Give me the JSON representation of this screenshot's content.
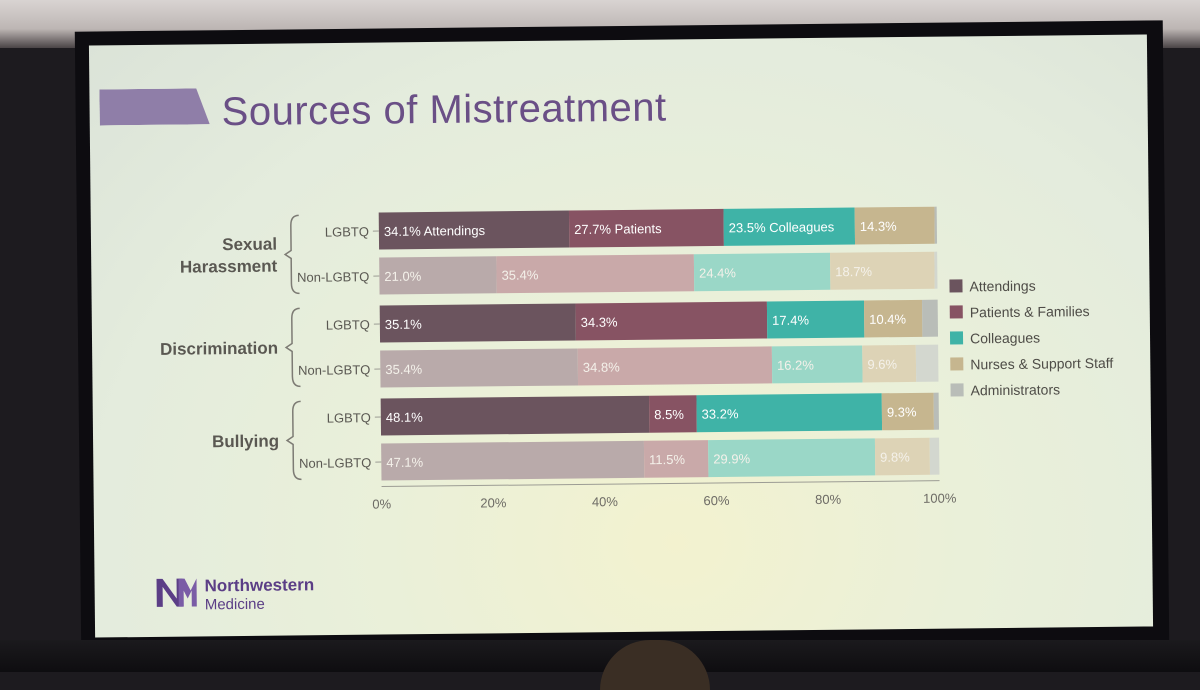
{
  "slide": {
    "title": "Sources of Mistreatment",
    "logo": {
      "line1": "Northwestern",
      "line2": "Medicine",
      "mark": "NM"
    }
  },
  "chart_data": {
    "type": "bar",
    "orientation": "horizontal",
    "stacked": true,
    "title": "Sources of Mistreatment",
    "xlim": [
      0,
      100
    ],
    "xticks": [
      "0%",
      "20%",
      "40%",
      "60%",
      "80%",
      "100%"
    ],
    "groups": [
      {
        "name": "Sexual Harassment",
        "lines": [
          "Sexual",
          "Harassment"
        ],
        "rows": [
          "LGBTQ",
          "Non-LGBTQ"
        ]
      },
      {
        "name": "Discrimination",
        "lines": [
          "Discrimination"
        ],
        "rows": [
          "LGBTQ",
          "Non-LGBTQ"
        ]
      },
      {
        "name": "Bullying",
        "lines": [
          "Bullying"
        ],
        "rows": [
          "LGBTQ",
          "Non-LGBTQ"
        ]
      }
    ],
    "categories": [
      "Sexual Harassment - LGBTQ",
      "Sexual Harassment - Non-LGBTQ",
      "Discrimination - LGBTQ",
      "Discrimination - Non-LGBTQ",
      "Bullying - LGBTQ",
      "Bullying - Non-LGBTQ"
    ],
    "series": [
      {
        "name": "Attendings",
        "color": "#6b545e",
        "color_light": "#b9aaaa",
        "values": [
          34.1,
          21.0,
          35.1,
          35.4,
          48.1,
          47.1
        ]
      },
      {
        "name": "Patients & Families",
        "color": "#875363",
        "color_light": "#c9a9a9",
        "values": [
          27.7,
          35.4,
          34.3,
          34.8,
          8.5,
          11.5
        ]
      },
      {
        "name": "Colleagues",
        "color": "#3fb3a7",
        "color_light": "#9ad7c7",
        "values": [
          23.5,
          24.4,
          17.4,
          16.2,
          33.2,
          29.9
        ]
      },
      {
        "name": "Nurses & Support Staff",
        "color": "#c6b68f",
        "color_light": "#ddd3b6",
        "values": [
          14.3,
          18.7,
          10.4,
          9.6,
          9.3,
          9.8
        ]
      },
      {
        "name": "Administrators",
        "color": "#b9bdb8",
        "color_light": "#d3d7cf",
        "values": [
          0.4,
          0.5,
          2.8,
          4.0,
          0.9,
          1.7
        ]
      }
    ],
    "data_labels": [
      [
        "34.1% Attendings",
        "27.7% Patients",
        "23.5% Colleagues",
        "14.3%",
        ""
      ],
      [
        "21.0%",
        "35.4%",
        "24.4%",
        "18.7%",
        ""
      ],
      [
        "35.1%",
        "34.3%",
        "17.4%",
        "10.4%",
        ""
      ],
      [
        "35.4%",
        "34.8%",
        "16.2%",
        "9.6%",
        ""
      ],
      [
        "48.1%",
        "8.5%",
        "33.2%",
        "9.3%",
        ""
      ],
      [
        "47.1%",
        "11.5%",
        "29.9%",
        "9.8%",
        ""
      ]
    ],
    "legend": {
      "position": "right",
      "entries": [
        "Attendings",
        "Patients & Families",
        "Colleagues",
        "Nurses & Support Staff",
        "Administrators"
      ]
    }
  }
}
